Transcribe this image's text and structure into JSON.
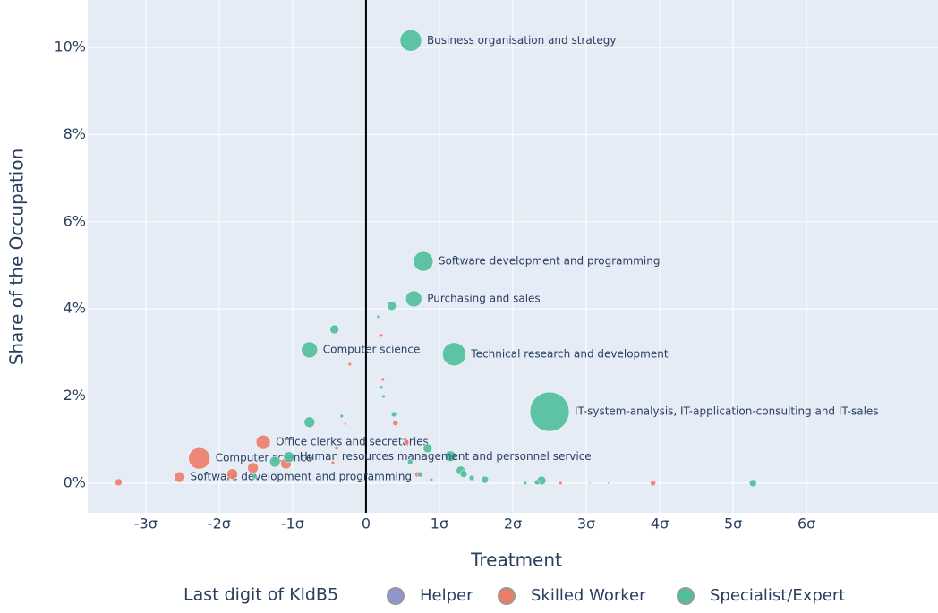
{
  "chart_data": {
    "type": "scatter",
    "x_label": "Treatment",
    "y_label": "Share of the Occupation",
    "legend_title": "Last digit of KldB5",
    "grid": true,
    "zero_line_x": true,
    "xlim": [
      -3.79,
      7.79
    ],
    "ylim": [
      -0.68,
      11.09
    ],
    "xticks": [
      {
        "value": -3,
        "label": "-3σ"
      },
      {
        "value": -2,
        "label": "-2σ"
      },
      {
        "value": -1,
        "label": "-1σ"
      },
      0,
      {
        "value": 1,
        "label": "1σ"
      },
      {
        "value": 2,
        "label": "2σ"
      },
      {
        "value": 3,
        "label": "3σ"
      },
      {
        "value": 4,
        "label": "4σ"
      },
      {
        "value": 5,
        "label": "5σ"
      },
      {
        "value": 6,
        "label": "6σ"
      }
    ],
    "yticks": [
      {
        "value": 0,
        "label": "0%"
      },
      {
        "value": 2,
        "label": "2%"
      },
      {
        "value": 4,
        "label": "4%"
      },
      {
        "value": 6,
        "label": "6%"
      },
      {
        "value": 8,
        "label": "8%"
      },
      {
        "value": 10,
        "label": "10%"
      }
    ],
    "series": [
      {
        "name": "Helper",
        "color": "#8e95cf",
        "x": [],
        "values": [],
        "sizes": [],
        "labels": []
      },
      {
        "name": "Skilled Worker",
        "color": "#ec7d69",
        "x": [
          -2.27,
          -1.4,
          -2.54,
          -3.37,
          -1.82,
          -1.54,
          -1.09,
          0.21,
          -0.22,
          0.23,
          0.4,
          -0.28,
          0.55,
          3.91,
          2.65,
          -0.4,
          0.7,
          -0.45
        ],
        "values": [
          0.57,
          0.94,
          0.14,
          0.02,
          0.21,
          0.35,
          0.45,
          3.39,
          2.73,
          2.38,
          1.38,
          1.36,
          0.94,
          0,
          0,
          0.8,
          0.2,
          0.47
        ],
        "sizes": [
          12,
          8,
          6,
          4,
          6,
          6,
          6,
          2,
          2,
          2,
          3,
          1.5,
          3,
          3,
          2,
          2,
          3,
          2
        ],
        "labels": [
          "Computer science",
          "Office clerks and secretaries",
          "Software development and programming",
          null,
          null,
          null,
          null,
          null,
          null,
          null,
          null,
          null,
          null,
          null,
          null,
          null,
          null,
          null
        ]
      },
      {
        "name": "Specialist/Expert",
        "color": "#4fbf9c",
        "x": [
          0.61,
          0.78,
          0.65,
          0.35,
          -0.43,
          0.17,
          -0.77,
          1.2,
          2.5,
          -0.77,
          0.38,
          -0.33,
          0.24,
          0.21,
          0.84,
          1.15,
          -1.05,
          -1.24,
          1.29,
          1.33,
          1.62,
          2.39,
          2.33,
          5.27,
          -1.52,
          3.05,
          3.3,
          2.17,
          0.6,
          0.74,
          1.44,
          0.89
        ],
        "values": [
          10.16,
          5.09,
          4.23,
          4.07,
          3.53,
          3.82,
          3.06,
          2.96,
          1.64,
          1.4,
          1.58,
          1.54,
          1.99,
          2.2,
          0.8,
          0.62,
          0.6,
          0.49,
          0.29,
          0.21,
          0.08,
          0.06,
          0.02,
          0,
          0.16,
          0,
          0,
          0,
          0.49,
          0.2,
          0.12,
          0.08
        ],
        "sizes": [
          12,
          11,
          9,
          5,
          5,
          2,
          9,
          13,
          22,
          6,
          3,
          2,
          2,
          2,
          5,
          6,
          6,
          6,
          5,
          4,
          4,
          5,
          3,
          4,
          3,
          1,
          1,
          2,
          3,
          3,
          3,
          2
        ],
        "labels": [
          "Business organisation and strategy",
          "Software development and programming",
          "Purchasing and sales",
          null,
          null,
          null,
          "Computer science",
          "Technical research and development",
          "IT-system-analysis, IT-application-consulting and IT-sales",
          null,
          null,
          null,
          null,
          null,
          null,
          null,
          "Human resources management and personnel service",
          null,
          null,
          null,
          null,
          null,
          null,
          null,
          null,
          null,
          null,
          null,
          null,
          null,
          null,
          null
        ]
      }
    ]
  }
}
